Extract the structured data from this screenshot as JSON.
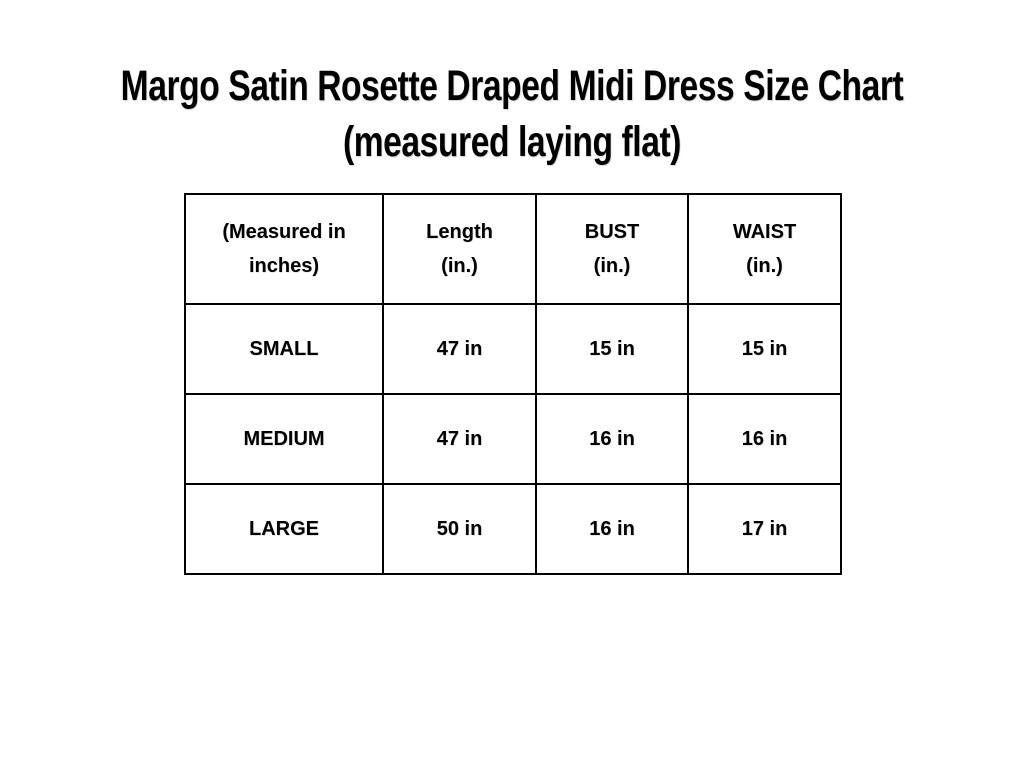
{
  "title": {
    "line1": "Margo Satin Rosette Draped Midi Dress Size Chart",
    "line2": "(measured laying flat)"
  },
  "table": {
    "headers": [
      {
        "line1": "(Measured in",
        "line2": "inches)"
      },
      {
        "line1": "Length",
        "line2": "(in.)"
      },
      {
        "line1": "BUST",
        "line2": "(in.)"
      },
      {
        "line1": "WAIST",
        "line2": "(in.)"
      }
    ]
  },
  "chart_data": {
    "type": "table",
    "title": "Margo Satin Rosette Draped Midi Dress Size Chart (measured laying flat)",
    "columns": [
      "(Measured in inches)",
      "Length (in.)",
      "BUST (in.)",
      "WAIST (in.)"
    ],
    "rows": [
      [
        "SMALL",
        "47 in",
        "15 in",
        "15 in"
      ],
      [
        "MEDIUM",
        "47 in",
        "16 in",
        "16 in"
      ],
      [
        "LARGE",
        "50 in",
        "16 in",
        "17 in"
      ]
    ],
    "units": "inches",
    "colors": {
      "border": "#000000",
      "text": "#000000",
      "background": "#ffffff"
    }
  }
}
